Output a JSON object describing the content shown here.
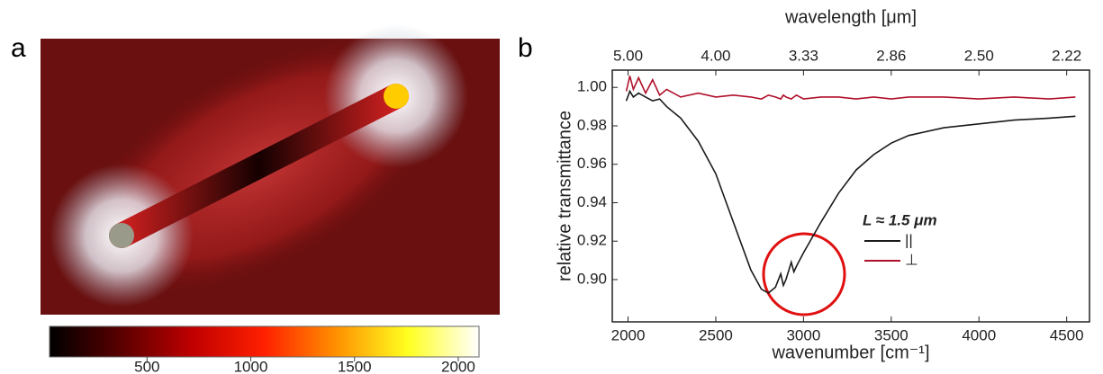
{
  "chart_data": [
    {
      "type": "colorbar",
      "panel": "a",
      "colors": [
        "#000000",
        "#5a0000",
        "#c00000",
        "#ff2000",
        "#ff9000",
        "#ffff20",
        "#ffffff"
      ],
      "clim": [
        30,
        2100
      ],
      "ticks": [
        500,
        1000,
        1500,
        2000
      ]
    },
    {
      "type": "line",
      "panel": "b",
      "x_label": "wavenumber [cm⁻¹]",
      "x2_label": "wavelength [μm]",
      "y_label": "relative transmittance",
      "legend_title": "L ≈ 1.5 μm",
      "x": [
        1990,
        2010,
        2030,
        2060,
        2100,
        2140,
        2180,
        2220,
        2300,
        2400,
        2500,
        2600,
        2700,
        2760,
        2800,
        2840,
        2870,
        2885,
        2900,
        2930,
        2945,
        2960,
        3000,
        3100,
        3200,
        3300,
        3400,
        3500,
        3600,
        3800,
        4000,
        4200,
        4400,
        4550
      ],
      "series": [
        {
          "name": "||",
          "color": "#1a1a1a",
          "values": [
            0.993,
            0.998,
            0.995,
            0.997,
            0.995,
            0.993,
            0.994,
            0.99,
            0.984,
            0.972,
            0.955,
            0.93,
            0.905,
            0.895,
            0.893,
            0.896,
            0.903,
            0.897,
            0.9,
            0.909,
            0.904,
            0.907,
            0.914,
            0.93,
            0.945,
            0.957,
            0.965,
            0.971,
            0.975,
            0.979,
            0.981,
            0.983,
            0.984,
            0.985
          ]
        },
        {
          "name": "⊥",
          "color": "#b0102a",
          "values": [
            0.998,
            1.006,
            0.999,
            1.005,
            0.997,
            1.004,
            0.996,
            0.999,
            0.995,
            0.997,
            0.995,
            0.996,
            0.995,
            0.994,
            0.996,
            0.995,
            0.994,
            0.996,
            0.995,
            0.994,
            0.995,
            0.996,
            0.994,
            0.995,
            0.995,
            0.994,
            0.995,
            0.994,
            0.995,
            0.995,
            0.994,
            0.995,
            0.994,
            0.995
          ]
        }
      ],
      "xlim": [
        1910,
        4630
      ],
      "xticks": [
        2000,
        2500,
        3000,
        3500,
        4000,
        4500
      ],
      "x2ticks": [
        {
          "value": 2000,
          "label": "5.00"
        },
        {
          "value": 2500,
          "label": "4.00"
        },
        {
          "value": 3000,
          "label": "3.33"
        },
        {
          "value": 3500,
          "label": "2.86"
        },
        {
          "value": 4000,
          "label": "2.50"
        },
        {
          "value": 4500,
          "label": "2.22"
        }
      ],
      "ylim": [
        0.878,
        1.009
      ],
      "yticks": [
        {
          "value": 0.9,
          "label": "0.90"
        },
        {
          "value": 0.92,
          "label": "0.92"
        },
        {
          "value": 0.94,
          "label": "0.94"
        },
        {
          "value": 0.96,
          "label": "0.96"
        },
        {
          "value": 0.98,
          "label": "0.98"
        },
        {
          "value": 1.0,
          "label": "1.00"
        }
      ]
    }
  ]
}
